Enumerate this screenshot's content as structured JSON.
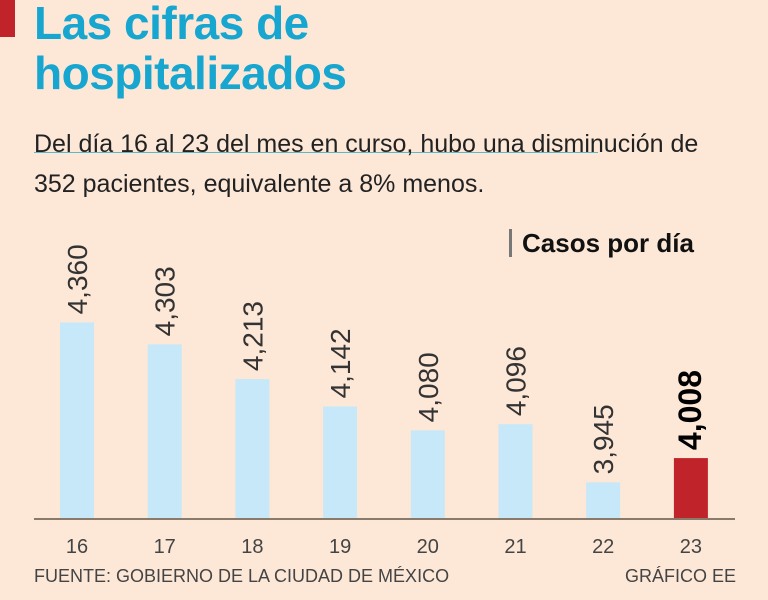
{
  "header": {
    "title_line1": "Las cifras de",
    "title_line2": "hospitalizados"
  },
  "subtitle": "Del día 16 al 23 del mes en curso, hubo una disminución de 352 pacientes, equivalente a 8% menos.",
  "footer": {
    "source": "FUENTE: GOBIERNO DE LA CIUDAD DE MÉXICO",
    "credit": "GRÁFICO EE"
  },
  "colors": {
    "bar": "#c6e8f8",
    "highlight": "#c1232b",
    "title": "#16a6cf",
    "background": "#fde8d8"
  },
  "chart_data": {
    "type": "bar",
    "title": "Casos por día",
    "categories": [
      "16",
      "17",
      "18",
      "19",
      "20",
      "21",
      "22",
      "23"
    ],
    "values": [
      4360,
      4303,
      4213,
      4142,
      4080,
      4096,
      3945,
      4008
    ],
    "labels": [
      "4,360",
      "4,303",
      "4,213",
      "4,142",
      "4,080",
      "4,096",
      "3,945",
      "4,008"
    ],
    "highlight_index": 7,
    "ylim": [
      3850,
      4400
    ],
    "grid": false,
    "xlabel": "",
    "ylabel": ""
  }
}
